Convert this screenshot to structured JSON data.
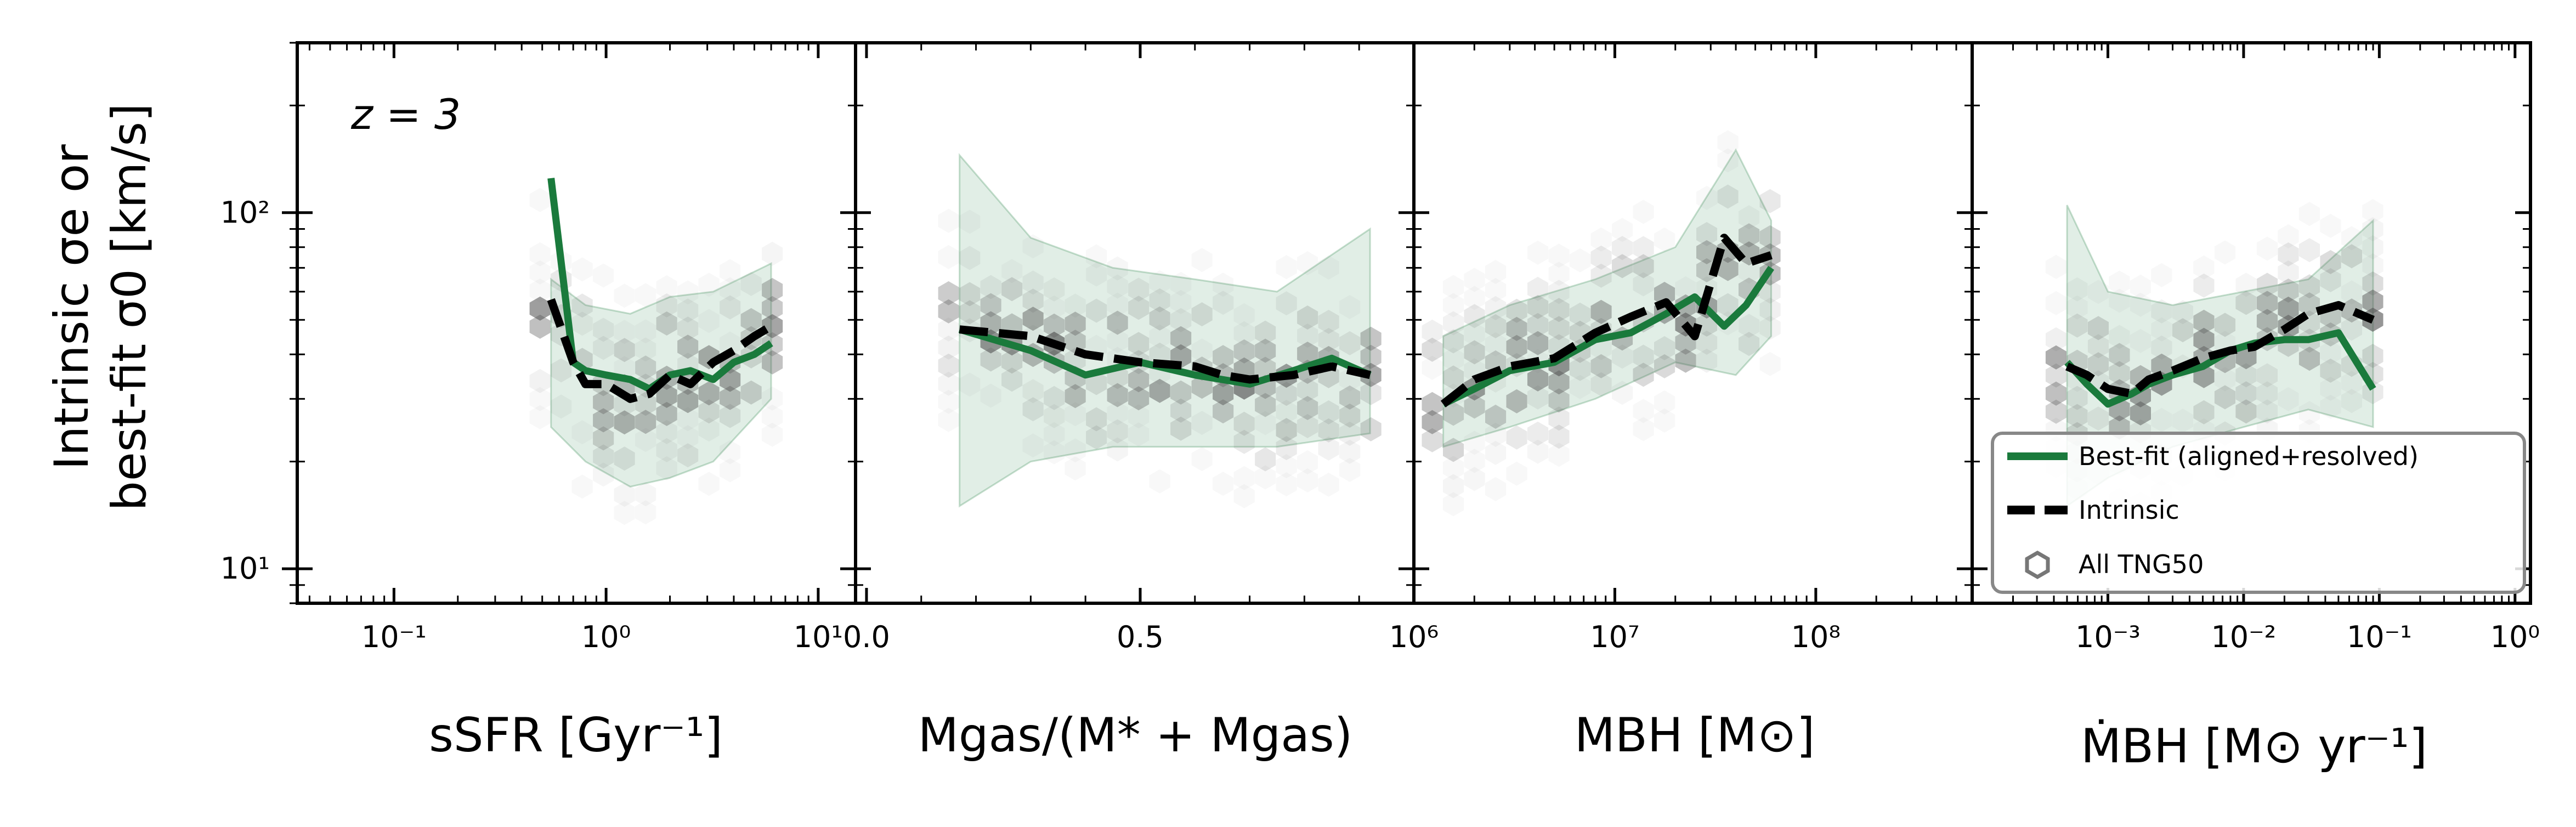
{
  "figure": {
    "ylabel_line1": "Intrinsic σe or",
    "ylabel_line2": "best-fit σ0 [km/s]",
    "annotation": "z = 3",
    "colors": {
      "bestfit": "#1a7a3c",
      "intrinsic": "#000000",
      "band": "#1a7a3c",
      "hex": "#555555"
    }
  },
  "legend": {
    "items": [
      {
        "label": "Best-fit (aligned+resolved)",
        "style": "green-solid"
      },
      {
        "label": "Intrinsic",
        "style": "black-dashed"
      },
      {
        "label": "All TNG50",
        "style": "hexagon"
      }
    ]
  },
  "chart_data": [
    {
      "type": "line",
      "panel": "ssfr",
      "xscale": "log",
      "xlim": [
        0.035,
        15
      ],
      "ylim": [
        8,
        300
      ],
      "xlabel": "sSFR [Gyr⁻¹]",
      "ylabel": "Intrinsic σe or best-fit σ0 [km/s]",
      "xticks": [
        {
          "value": 0.1,
          "label": "10⁻¹"
        },
        {
          "value": 1,
          "label": "10⁰"
        },
        {
          "value": 10,
          "label": "10¹"
        }
      ],
      "yticks": [
        {
          "value": 10,
          "label": "10¹"
        },
        {
          "value": 100,
          "label": "10²"
        }
      ],
      "series": [
        {
          "name": "Best-fit (aligned+resolved)",
          "x": [
            0.55,
            0.7,
            0.8,
            1.0,
            1.3,
            1.6,
            2.0,
            2.5,
            3.2,
            4.0,
            5.0,
            6.0
          ],
          "y": [
            125,
            38,
            36,
            35,
            34,
            32,
            35,
            36,
            34,
            38,
            40,
            43
          ]
        },
        {
          "name": "Intrinsic",
          "x": [
            0.55,
            0.7,
            0.8,
            1.0,
            1.3,
            1.6,
            2.0,
            2.5,
            3.2,
            4.0,
            5.0,
            6.0
          ],
          "y": [
            57,
            38,
            33,
            33,
            30,
            31,
            35,
            33,
            38,
            41,
            45,
            48
          ]
        }
      ],
      "band": {
        "x": [
          0.55,
          0.8,
          1.3,
          2.0,
          3.2,
          6.0
        ],
        "lower": [
          25,
          20,
          17,
          18,
          20,
          30
        ],
        "upper": [
          65,
          55,
          52,
          58,
          60,
          72
        ]
      }
    },
    {
      "type": "line",
      "panel": "gas_fraction",
      "xscale": "linear",
      "xlim": [
        -0.02,
        1.0
      ],
      "ylim": [
        8,
        300
      ],
      "xlabel": "Mgas/(M* + Mgas)",
      "xticks": [
        {
          "value": 0.0,
          "label": "0.0"
        },
        {
          "value": 0.5,
          "label": "0.5"
        }
      ],
      "series": [
        {
          "name": "Best-fit (aligned+resolved)",
          "x": [
            0.17,
            0.3,
            0.4,
            0.5,
            0.6,
            0.7,
            0.78,
            0.85,
            0.92
          ],
          "y": [
            47,
            41,
            35,
            38,
            35,
            33,
            36,
            39,
            35
          ]
        },
        {
          "name": "Intrinsic",
          "x": [
            0.17,
            0.3,
            0.4,
            0.5,
            0.6,
            0.65,
            0.7,
            0.78,
            0.85,
            0.92
          ],
          "y": [
            47,
            45,
            40,
            38,
            37,
            35,
            34,
            35,
            37,
            35
          ]
        }
      ],
      "band": {
        "x": [
          0.17,
          0.3,
          0.45,
          0.6,
          0.75,
          0.92
        ],
        "lower": [
          15,
          20,
          22,
          22,
          22,
          24
        ],
        "upper": [
          145,
          85,
          70,
          65,
          60,
          90
        ]
      }
    },
    {
      "type": "line",
      "panel": "bh_mass",
      "xscale": "log",
      "xlim": [
        1000000,
        600000000
      ],
      "ylim": [
        8,
        300
      ],
      "xlabel": "MBH [M⊙]",
      "xticks": [
        {
          "value": 1000000,
          "label": "10⁶"
        },
        {
          "value": 10000000,
          "label": "10⁷"
        },
        {
          "value": 100000000,
          "label": "10⁸"
        }
      ],
      "series": [
        {
          "name": "Best-fit (aligned+resolved)",
          "x": [
            1400000,
            2000000,
            3000000,
            5000000,
            8000000,
            12000000,
            18000000,
            25000000,
            35000000,
            45000000,
            60000000
          ],
          "y": [
            29,
            32,
            36,
            38,
            44,
            46,
            52,
            58,
            48,
            55,
            70
          ]
        },
        {
          "name": "Intrinsic",
          "x": [
            1400000,
            2000000,
            3000000,
            5000000,
            8000000,
            12000000,
            18000000,
            25000000,
            35000000,
            45000000,
            60000000
          ],
          "y": [
            29,
            34,
            37,
            39,
            46,
            51,
            56,
            45,
            85,
            72,
            76
          ]
        }
      ],
      "band": {
        "x": [
          1400000,
          3000000,
          8000000,
          20000000,
          40000000,
          60000000
        ],
        "lower": [
          22,
          25,
          30,
          38,
          35,
          45
        ],
        "upper": [
          45,
          55,
          65,
          80,
          150,
          95
        ]
      }
    },
    {
      "type": "line",
      "panel": "bh_accretion",
      "xscale": "log",
      "xlim": [
        0.0001,
        1.3
      ],
      "ylim": [
        8,
        300
      ],
      "xlabel": "ṀBH [M⊙ yr⁻¹]",
      "xticks": [
        {
          "value": 0.001,
          "label": "10⁻³"
        },
        {
          "value": 0.01,
          "label": "10⁻²"
        },
        {
          "value": 0.1,
          "label": "10⁻¹"
        },
        {
          "value": 1,
          "label": "10⁰"
        }
      ],
      "series": [
        {
          "name": "Best-fit (aligned+resolved)",
          "x": [
            0.0005,
            0.0007,
            0.001,
            0.0015,
            0.002,
            0.003,
            0.005,
            0.008,
            0.012,
            0.02,
            0.03,
            0.05,
            0.09
          ],
          "y": [
            38,
            33,
            29,
            31,
            33,
            35,
            37,
            41,
            43,
            44,
            44,
            46,
            32
          ]
        },
        {
          "name": "Intrinsic",
          "x": [
            0.0005,
            0.0007,
            0.001,
            0.0015,
            0.002,
            0.003,
            0.005,
            0.008,
            0.012,
            0.02,
            0.03,
            0.05,
            0.09
          ],
          "y": [
            37,
            35,
            32,
            31,
            34,
            36,
            39,
            41,
            42,
            47,
            52,
            55,
            50
          ]
        }
      ],
      "band": {
        "x": [
          0.0005,
          0.001,
          0.003,
          0.01,
          0.03,
          0.09
        ],
        "lower": [
          15,
          18,
          22,
          25,
          28,
          25
        ],
        "upper": [
          105,
          60,
          55,
          60,
          65,
          95
        ]
      }
    }
  ]
}
